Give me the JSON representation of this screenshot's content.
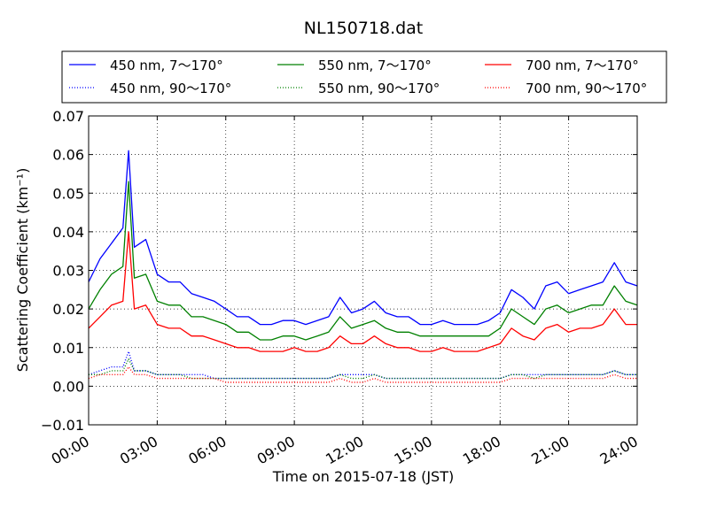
{
  "chart_data": {
    "type": "line",
    "title": "NL150718.dat",
    "xlabel": "Time on 2015-07-18 (JST)",
    "ylabel": "Scattering Coefficient (km⁻¹)",
    "xlim": [
      0,
      24
    ],
    "ylim": [
      -0.01,
      0.07
    ],
    "x_ticks": [
      "00:00",
      "03:00",
      "06:00",
      "09:00",
      "12:00",
      "15:00",
      "18:00",
      "21:00",
      "24:00"
    ],
    "x_tick_values": [
      0,
      3,
      6,
      9,
      12,
      15,
      18,
      21,
      24
    ],
    "y_ticks": [
      "−0.01",
      "0.00",
      "0.01",
      "0.02",
      "0.03",
      "0.04",
      "0.05",
      "0.06",
      "0.07"
    ],
    "y_tick_values": [
      -0.01,
      0.0,
      0.01,
      0.02,
      0.03,
      0.04,
      0.05,
      0.06,
      0.07
    ],
    "grid": true,
    "legend_position": "top, above plot",
    "x": [
      0,
      0.5,
      1.0,
      1.5,
      1.75,
      2.0,
      2.5,
      3.0,
      3.5,
      4.0,
      4.5,
      5.0,
      5.5,
      6.0,
      6.5,
      7.0,
      7.5,
      8.0,
      8.5,
      9.0,
      9.5,
      10.0,
      10.5,
      11.0,
      11.5,
      12.0,
      12.5,
      13.0,
      13.5,
      14.0,
      14.5,
      15.0,
      15.5,
      16.0,
      16.5,
      17.0,
      17.5,
      18.0,
      18.5,
      19.0,
      19.5,
      20.0,
      20.5,
      21.0,
      21.5,
      22.0,
      22.5,
      23.0,
      23.5,
      24.0
    ],
    "series": [
      {
        "name": "450 nm, 7～170°",
        "color": "#0000ff",
        "style": "solid",
        "values": [
          0.027,
          0.033,
          0.037,
          0.041,
          0.061,
          0.036,
          0.038,
          0.029,
          0.027,
          0.027,
          0.024,
          0.023,
          0.022,
          0.02,
          0.018,
          0.018,
          0.016,
          0.016,
          0.017,
          0.017,
          0.016,
          0.017,
          0.018,
          0.023,
          0.019,
          0.02,
          0.022,
          0.019,
          0.018,
          0.018,
          0.016,
          0.016,
          0.017,
          0.016,
          0.016,
          0.016,
          0.017,
          0.019,
          0.025,
          0.023,
          0.02,
          0.026,
          0.027,
          0.024,
          0.025,
          0.026,
          0.027,
          0.032,
          0.027,
          0.026
        ]
      },
      {
        "name": "550 nm, 7～170°",
        "color": "#008000",
        "style": "solid",
        "values": [
          0.02,
          0.025,
          0.029,
          0.031,
          0.053,
          0.028,
          0.029,
          0.022,
          0.021,
          0.021,
          0.018,
          0.018,
          0.017,
          0.016,
          0.014,
          0.014,
          0.012,
          0.012,
          0.013,
          0.013,
          0.012,
          0.013,
          0.014,
          0.018,
          0.015,
          0.016,
          0.017,
          0.015,
          0.014,
          0.014,
          0.013,
          0.013,
          0.013,
          0.013,
          0.013,
          0.013,
          0.013,
          0.015,
          0.02,
          0.018,
          0.016,
          0.02,
          0.021,
          0.019,
          0.02,
          0.021,
          0.021,
          0.026,
          0.022,
          0.021
        ]
      },
      {
        "name": "700 nm, 7～170°",
        "color": "#ff0000",
        "style": "solid",
        "values": [
          0.015,
          0.018,
          0.021,
          0.022,
          0.04,
          0.02,
          0.021,
          0.016,
          0.015,
          0.015,
          0.013,
          0.013,
          0.012,
          0.011,
          0.01,
          0.01,
          0.009,
          0.009,
          0.009,
          0.01,
          0.009,
          0.009,
          0.01,
          0.013,
          0.011,
          0.011,
          0.013,
          0.011,
          0.01,
          0.01,
          0.009,
          0.009,
          0.01,
          0.009,
          0.009,
          0.009,
          0.01,
          0.011,
          0.015,
          0.013,
          0.012,
          0.015,
          0.016,
          0.014,
          0.015,
          0.015,
          0.016,
          0.02,
          0.016,
          0.016
        ]
      },
      {
        "name": "450 nm, 90～170°",
        "color": "#0000ff",
        "style": "dotted",
        "values": [
          0.003,
          0.004,
          0.005,
          0.005,
          0.009,
          0.004,
          0.004,
          0.003,
          0.003,
          0.003,
          0.003,
          0.003,
          0.002,
          0.002,
          0.002,
          0.002,
          0.002,
          0.002,
          0.002,
          0.002,
          0.002,
          0.002,
          0.002,
          0.003,
          0.003,
          0.003,
          0.003,
          0.002,
          0.002,
          0.002,
          0.002,
          0.002,
          0.002,
          0.002,
          0.002,
          0.002,
          0.002,
          0.002,
          0.003,
          0.003,
          0.003,
          0.003,
          0.003,
          0.003,
          0.003,
          0.003,
          0.003,
          0.004,
          0.003,
          0.003
        ]
      },
      {
        "name": "550 nm, 90～170°",
        "color": "#008000",
        "style": "dotted",
        "values": [
          0.003,
          0.003,
          0.004,
          0.004,
          0.007,
          0.004,
          0.004,
          0.003,
          0.003,
          0.003,
          0.002,
          0.002,
          0.002,
          0.002,
          0.002,
          0.002,
          0.002,
          0.002,
          0.002,
          0.002,
          0.002,
          0.002,
          0.002,
          0.003,
          0.002,
          0.002,
          0.003,
          0.002,
          0.002,
          0.002,
          0.002,
          0.002,
          0.002,
          0.002,
          0.002,
          0.002,
          0.002,
          0.002,
          0.003,
          0.003,
          0.002,
          0.003,
          0.003,
          0.003,
          0.003,
          0.003,
          0.003,
          0.004,
          0.003,
          0.003
        ]
      },
      {
        "name": "700 nm, 90～170°",
        "color": "#ff0000",
        "style": "dotted",
        "values": [
          0.002,
          0.003,
          0.003,
          0.003,
          0.005,
          0.003,
          0.003,
          0.002,
          0.002,
          0.002,
          0.002,
          0.002,
          0.002,
          0.001,
          0.001,
          0.001,
          0.001,
          0.001,
          0.001,
          0.001,
          0.001,
          0.001,
          0.001,
          0.002,
          0.001,
          0.001,
          0.002,
          0.001,
          0.001,
          0.001,
          0.001,
          0.001,
          0.001,
          0.001,
          0.001,
          0.001,
          0.001,
          0.001,
          0.002,
          0.002,
          0.002,
          0.002,
          0.002,
          0.002,
          0.002,
          0.002,
          0.002,
          0.003,
          0.002,
          0.002
        ]
      }
    ]
  }
}
